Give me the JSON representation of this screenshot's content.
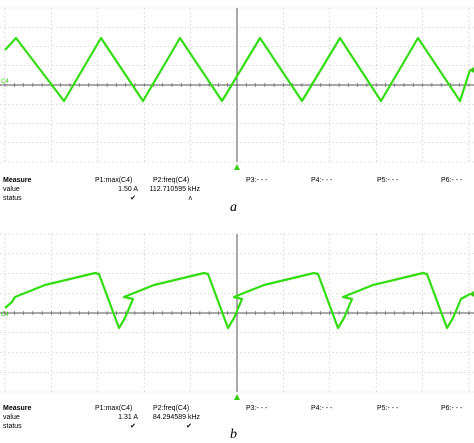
{
  "panels": [
    {
      "id": "a",
      "caption": "a",
      "channel_label": "C4",
      "waveform": "triangle",
      "waveform_color": "#33dd11",
      "measure": {
        "header": "Measure",
        "rows": [
          "value",
          "status"
        ],
        "p1": {
          "title": "P1:max(C4)",
          "value": "1.50 A",
          "status": "✔"
        },
        "p2": {
          "title": "P2:freq(C4)",
          "value": "112.710595 kHz",
          "status": "ʌ"
        },
        "p3": "P3:- - -",
        "p4": "P4:- - -",
        "p5": "P5:- - -",
        "p6": "P6:- - -"
      }
    },
    {
      "id": "b",
      "caption": "b",
      "channel_label": "C4",
      "waveform": "sawtooth",
      "waveform_color": "#33dd11",
      "measure": {
        "header": "Measure",
        "rows": [
          "value",
          "status"
        ],
        "p1": {
          "title": "P1:max(C4)",
          "value": "1.31 A",
          "status": "✔"
        },
        "p2": {
          "title": "P2:freq(C4)",
          "value": "84.294589 kHz",
          "status": "✔"
        },
        "p3": "P3:- - -",
        "p4": "P4:- - -",
        "p5": "P5:- - -",
        "p6": "P6:- - -"
      }
    }
  ]
}
